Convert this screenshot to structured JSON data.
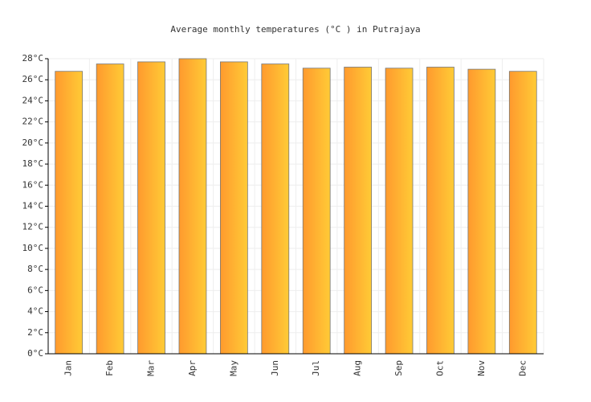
{
  "chart_data": {
    "type": "bar",
    "title": "Average monthly temperatures (°C ) in Putrajaya",
    "categories": [
      "Jan",
      "Feb",
      "Mar",
      "Apr",
      "May",
      "Jun",
      "Jul",
      "Aug",
      "Sep",
      "Oct",
      "Nov",
      "Dec"
    ],
    "values": [
      26.8,
      27.5,
      27.7,
      28.0,
      27.7,
      27.5,
      27.1,
      27.2,
      27.1,
      27.2,
      27.0,
      26.8
    ],
    "color": [
      "#ff9a2e",
      "#ffcb36"
    ],
    "ylim": [
      0,
      28
    ],
    "yticks": [
      {
        "value": 0,
        "label": "0°C"
      },
      {
        "value": 2,
        "label": "2°C"
      },
      {
        "value": 4,
        "label": "4°C"
      },
      {
        "value": 6,
        "label": "6°C"
      },
      {
        "value": 8,
        "label": "8°C"
      },
      {
        "value": 10,
        "label": "10°C"
      },
      {
        "value": 12,
        "label": "12°C"
      },
      {
        "value": 14,
        "label": "14°C"
      },
      {
        "value": 16,
        "label": "16°C"
      },
      {
        "value": 18,
        "label": "18°C"
      },
      {
        "value": 20,
        "label": "20°C"
      },
      {
        "value": 22,
        "label": "22°C"
      },
      {
        "value": 24,
        "label": "24°C"
      },
      {
        "value": 26,
        "label": "26°C"
      },
      {
        "value": 28,
        "label": "28°C"
      }
    ],
    "grid": true
  }
}
